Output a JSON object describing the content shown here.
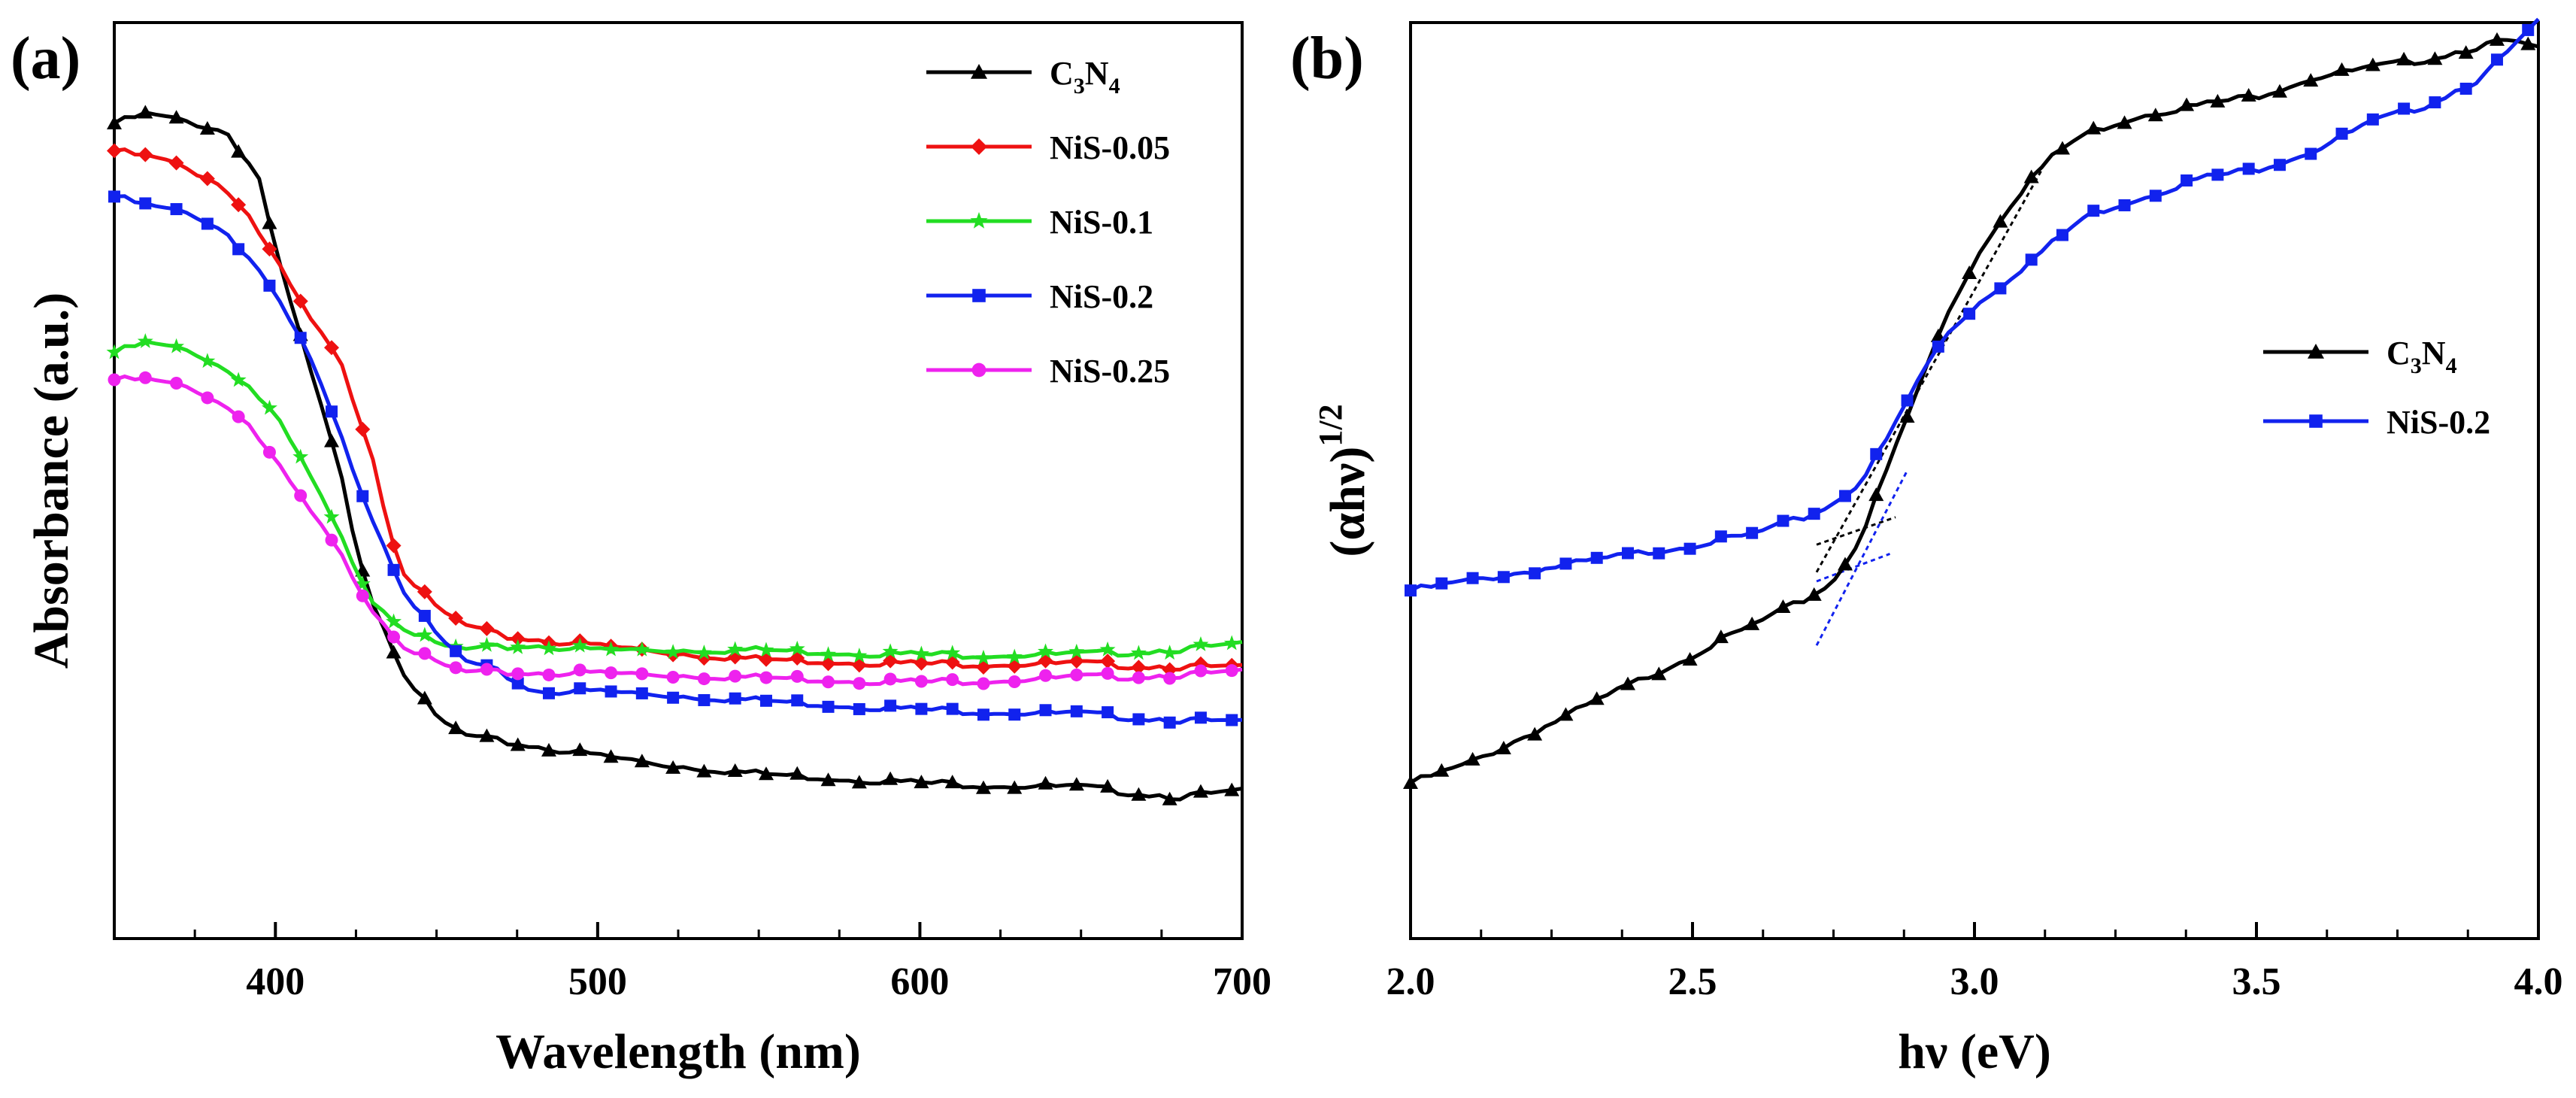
{
  "chart_data": [
    {
      "panel_label": "(a)",
      "type": "line",
      "xlabel": "Wavelength (nm)",
      "ylabel": "Absorbance (a.u.)",
      "xlim": [
        350,
        700
      ],
      "ylim": [
        0,
        1
      ],
      "x_ticks": [
        400,
        500,
        600,
        700
      ],
      "y_ticks": [],
      "legend_position": "top-right",
      "series": [
        {
          "name": "C3N4",
          "color": "#000000",
          "marker": "triangle",
          "x": [
            350,
            360,
            375,
            385,
            395,
            400,
            410,
            420,
            425,
            430,
            440,
            450,
            460,
            480,
            500,
            520,
            550,
            600,
            650,
            680,
            700
          ],
          "y": [
            0.89,
            0.9,
            0.89,
            0.88,
            0.83,
            0.75,
            0.63,
            0.51,
            0.43,
            0.37,
            0.29,
            0.24,
            0.22,
            0.21,
            0.2,
            0.19,
            0.18,
            0.17,
            0.165,
            0.155,
            0.16
          ]
        },
        {
          "name": "NiS-0.05",
          "color": "#ee1111",
          "marker": "diamond",
          "x": [
            350,
            365,
            380,
            390,
            400,
            410,
            420,
            430,
            435,
            440,
            450,
            460,
            470,
            500,
            530,
            550,
            600,
            650,
            700
          ],
          "y": [
            0.86,
            0.85,
            0.83,
            0.8,
            0.74,
            0.68,
            0.63,
            0.53,
            0.45,
            0.4,
            0.36,
            0.34,
            0.33,
            0.32,
            0.31,
            0.305,
            0.3,
            0.3,
            0.295
          ]
        },
        {
          "name": "NiS-0.1",
          "color": "#22dd22",
          "marker": "star",
          "x": [
            350,
            360,
            375,
            390,
            400,
            410,
            420,
            430,
            440,
            450,
            460,
            480,
            500,
            550,
            600,
            650,
            700
          ],
          "y": [
            0.64,
            0.65,
            0.64,
            0.61,
            0.57,
            0.51,
            0.44,
            0.37,
            0.34,
            0.32,
            0.315,
            0.32,
            0.315,
            0.315,
            0.31,
            0.31,
            0.32
          ]
        },
        {
          "name": "NiS-0.2",
          "color": "#1122ee",
          "marker": "square",
          "x": [
            350,
            360,
            375,
            385,
            395,
            400,
            410,
            420,
            430,
            440,
            450,
            460,
            470,
            480,
            500,
            550,
            600,
            650,
            700
          ],
          "y": [
            0.81,
            0.8,
            0.79,
            0.77,
            0.73,
            0.7,
            0.64,
            0.55,
            0.46,
            0.38,
            0.33,
            0.3,
            0.29,
            0.27,
            0.27,
            0.26,
            0.25,
            0.245,
            0.235
          ]
        },
        {
          "name": "NiS-0.25",
          "color": "#ee22ee",
          "marker": "circle",
          "x": [
            350,
            360,
            375,
            390,
            400,
            410,
            420,
            430,
            440,
            450,
            460,
            480,
            500,
            550,
            600,
            650,
            700
          ],
          "y": [
            0.61,
            0.61,
            0.6,
            0.57,
            0.52,
            0.47,
            0.42,
            0.36,
            0.32,
            0.3,
            0.29,
            0.29,
            0.29,
            0.285,
            0.28,
            0.285,
            0.29
          ]
        }
      ]
    },
    {
      "panel_label": "(b)",
      "type": "line",
      "xlabel": "hν (eV)",
      "ylabel": "(αhν)1/2",
      "ylabel_main": "(αhν)",
      "ylabel_exp": "1/2",
      "xlim": [
        2.0,
        4.0
      ],
      "ylim": [
        0,
        1
      ],
      "x_ticks": [
        "2.0",
        "2.5",
        "3.0",
        "3.5",
        "4.0"
      ],
      "y_ticks": [],
      "legend_position": "right",
      "series": [
        {
          "name": "C3N4",
          "color": "#000000",
          "marker": "triangle",
          "x": [
            2.0,
            2.1,
            2.2,
            2.3,
            2.4,
            2.5,
            2.6,
            2.7,
            2.75,
            2.8,
            2.85,
            2.9,
            2.95,
            3.0,
            3.05,
            3.1,
            3.15,
            3.2,
            3.3,
            3.4,
            3.5,
            3.6,
            3.7,
            3.8,
            3.9,
            3.95,
            4.0
          ],
          "y": [
            0.17,
            0.19,
            0.22,
            0.25,
            0.28,
            0.31,
            0.34,
            0.37,
            0.39,
            0.44,
            0.52,
            0.6,
            0.68,
            0.74,
            0.79,
            0.83,
            0.86,
            0.88,
            0.9,
            0.91,
            0.92,
            0.94,
            0.95,
            0.96,
            0.975,
            0.98,
            0.97
          ]
        },
        {
          "name": "NiS-0.2",
          "color": "#1122ee",
          "marker": "square",
          "x": [
            2.0,
            2.1,
            2.2,
            2.3,
            2.4,
            2.5,
            2.6,
            2.7,
            2.75,
            2.8,
            2.85,
            2.9,
            2.95,
            3.0,
            3.1,
            3.2,
            3.3,
            3.4,
            3.5,
            3.6,
            3.7,
            3.8,
            3.9,
            3.95,
            4.0
          ],
          "y": [
            0.38,
            0.39,
            0.4,
            0.41,
            0.42,
            0.43,
            0.44,
            0.46,
            0.475,
            0.5,
            0.55,
            0.61,
            0.66,
            0.69,
            0.74,
            0.79,
            0.81,
            0.83,
            0.84,
            0.86,
            0.89,
            0.91,
            0.94,
            0.97,
            1.0
          ]
        }
      ],
      "tangent_lines": [
        {
          "color": "#000000",
          "x": [
            2.72,
            3.12
          ],
          "y": [
            0.4,
            0.84
          ]
        },
        {
          "color": "#000000",
          "x": [
            2.72,
            2.86
          ],
          "y": [
            0.43,
            0.46
          ]
        },
        {
          "color": "#1122ee",
          "x": [
            2.72,
            2.88
          ],
          "y": [
            0.32,
            0.51
          ]
        },
        {
          "color": "#1122ee",
          "x": [
            2.72,
            2.85
          ],
          "y": [
            0.39,
            0.42
          ]
        }
      ]
    }
  ]
}
